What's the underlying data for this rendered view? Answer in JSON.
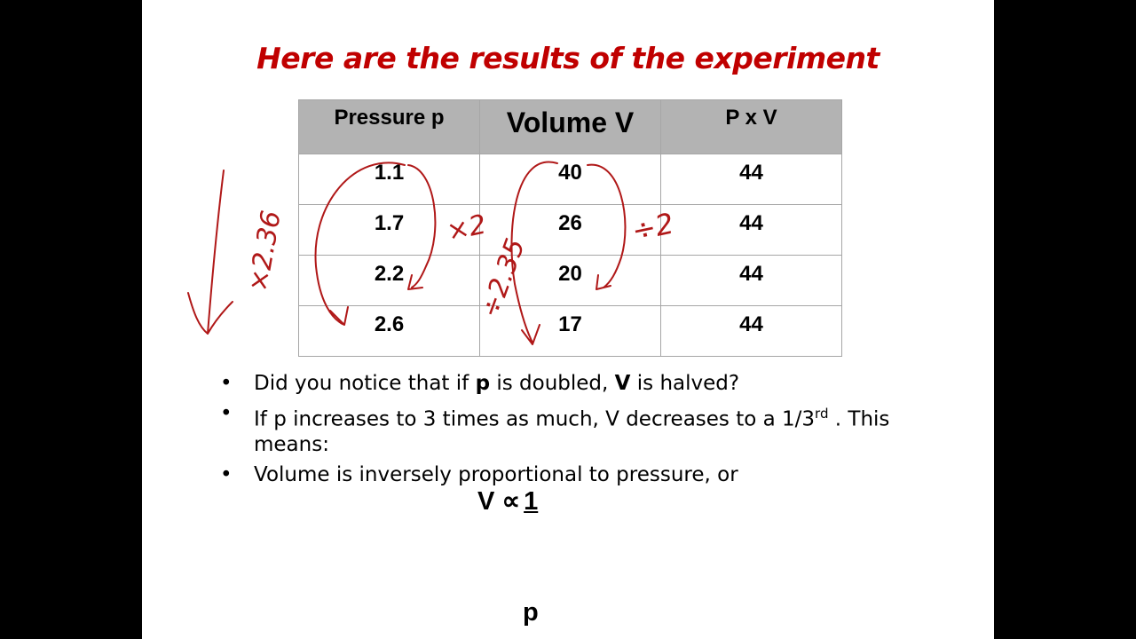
{
  "slide": {
    "title": "Here are the results of the experiment",
    "table": {
      "headers": [
        "Pressure p",
        "Volume V",
        "P x V"
      ],
      "rows": [
        [
          "1.1",
          "40",
          "44"
        ],
        [
          "1.7",
          "26",
          "44"
        ],
        [
          "2.2",
          "20",
          "44"
        ],
        [
          "2.6",
          "17",
          "44"
        ]
      ]
    },
    "bullets": {
      "b1": {
        "pre": "Did you notice that if ",
        "bold1": "p",
        "mid": " is doubled, ",
        "bold2": "V",
        "post": " is halved?"
      },
      "b2": {
        "pre": "If p increases to 3 times as much, V decreases to a 1/3",
        "sup": "rd",
        "post": " . This means:"
      },
      "b3": {
        "text": "Volume is inversely proportional to pressure, or"
      },
      "marker": "•"
    },
    "formula": {
      "lhs": "V ∝",
      "numerator": "1",
      "denominator": "p"
    },
    "annotations": {
      "left_note": "×2.36",
      "middle_note_1": "×2",
      "middle_note_2": "÷2.35",
      "right_note": "÷2",
      "ink_color": "#b01818"
    }
  }
}
